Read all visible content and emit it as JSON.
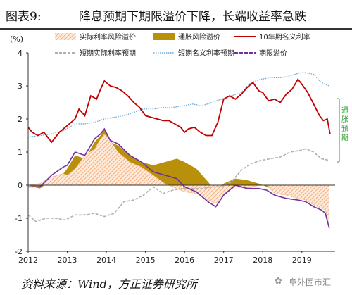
{
  "header": {
    "figure_label": "图表9:",
    "title": "降息预期下期限溢价下降，长端收益率急跌"
  },
  "footer": {
    "source": "资料来源：Wind，方正证券研究所",
    "watermark": "阜外固市汇"
  },
  "colors": {
    "nominal10y": "#c00000",
    "term_premium_area": "#b8900a",
    "real_risk_premium": "#f0a070",
    "short_real_expect": "#b0b0b0",
    "short_nominal_expect": "#6aa8d8",
    "term_premium_line": "#7030a0",
    "inflation_annotation": "#2aa02a"
  },
  "annotation": {
    "text": "通胀预期"
  },
  "chart_data": {
    "type": "line",
    "unit": "(%)",
    "ylim": [
      -2,
      4
    ],
    "yticks": [
      -2,
      -1,
      0,
      1,
      2,
      3,
      4
    ],
    "xlim": [
      2012.0,
      2019.85
    ],
    "xticks": [
      "2012",
      "2013",
      "2014",
      "2015",
      "2016",
      "2017",
      "2018",
      "2019"
    ],
    "grid": false,
    "legend_position": "top",
    "series": [
      {
        "name": "实际利率风险溢价",
        "style": "hatched-area",
        "points": [
          [
            2012.0,
            0.0
          ],
          [
            2012.3,
            0.05
          ],
          [
            2012.6,
            0.25
          ],
          [
            2012.9,
            0.35
          ],
          [
            2013.0,
            0.3
          ],
          [
            2013.2,
            0.5
          ],
          [
            2013.45,
            0.9
          ],
          [
            2013.7,
            1.1
          ],
          [
            2013.85,
            1.4
          ],
          [
            2013.95,
            1.55
          ],
          [
            2014.1,
            1.35
          ],
          [
            2014.3,
            1.0
          ],
          [
            2014.6,
            0.7
          ],
          [
            2014.9,
            0.55
          ],
          [
            2015.2,
            0.3
          ],
          [
            2015.5,
            0.05
          ],
          [
            2015.8,
            -0.1
          ],
          [
            2016.0,
            -0.2
          ],
          [
            2016.3,
            -0.25
          ],
          [
            2016.6,
            -0.45
          ],
          [
            2016.8,
            -0.55
          ],
          [
            2017.0,
            -0.25
          ],
          [
            2017.3,
            -0.05
          ],
          [
            2017.6,
            -0.1
          ],
          [
            2017.9,
            0.0
          ],
          [
            2018.1,
            0.0
          ],
          [
            2018.3,
            -0.25
          ],
          [
            2018.6,
            -0.3
          ],
          [
            2018.9,
            -0.4
          ],
          [
            2019.1,
            -0.45
          ],
          [
            2019.3,
            -0.6
          ],
          [
            2019.5,
            -0.7
          ],
          [
            2019.6,
            -0.75
          ],
          [
            2019.7,
            -1.3
          ]
        ]
      },
      {
        "name": "通胀风险溢价",
        "style": "solid-area",
        "points": [
          [
            2012.0,
            0.0
          ],
          [
            2012.3,
            -0.1
          ],
          [
            2012.6,
            0.15
          ],
          [
            2012.9,
            0.35
          ],
          [
            2013.0,
            0.5
          ],
          [
            2013.2,
            0.9
          ],
          [
            2013.45,
            0.8
          ],
          [
            2013.7,
            1.3
          ],
          [
            2013.85,
            1.5
          ],
          [
            2013.95,
            1.7
          ],
          [
            2014.1,
            1.3
          ],
          [
            2014.3,
            1.2
          ],
          [
            2014.6,
            0.9
          ],
          [
            2014.9,
            0.7
          ],
          [
            2015.2,
            0.6
          ],
          [
            2015.5,
            0.7
          ],
          [
            2015.8,
            0.8
          ],
          [
            2016.0,
            0.7
          ],
          [
            2016.3,
            0.5
          ],
          [
            2016.6,
            0.1
          ],
          [
            2016.8,
            -0.2
          ],
          [
            2017.0,
            0.05
          ],
          [
            2017.3,
            0.2
          ],
          [
            2017.6,
            0.15
          ],
          [
            2017.9,
            0.05
          ],
          [
            2018.1,
            -0.05
          ],
          [
            2018.3,
            -0.15
          ],
          [
            2018.6,
            -0.25
          ],
          [
            2018.9,
            -0.35
          ],
          [
            2019.1,
            -0.45
          ],
          [
            2019.3,
            -0.4
          ],
          [
            2019.5,
            -0.6
          ],
          [
            2019.6,
            -0.7
          ],
          [
            2019.7,
            -1.35
          ]
        ]
      },
      {
        "name": "10年期名义利率",
        "style": "line",
        "points": [
          [
            2012.0,
            1.75
          ],
          [
            2012.1,
            1.6
          ],
          [
            2012.25,
            1.5
          ],
          [
            2012.4,
            1.6
          ],
          [
            2012.6,
            1.3
          ],
          [
            2012.8,
            1.6
          ],
          [
            2013.0,
            1.8
          ],
          [
            2013.2,
            2.0
          ],
          [
            2013.3,
            2.3
          ],
          [
            2013.45,
            2.1
          ],
          [
            2013.6,
            2.7
          ],
          [
            2013.75,
            2.6
          ],
          [
            2013.85,
            2.9
          ],
          [
            2013.95,
            3.15
          ],
          [
            2014.1,
            3.0
          ],
          [
            2014.25,
            2.95
          ],
          [
            2014.4,
            2.85
          ],
          [
            2014.55,
            2.7
          ],
          [
            2014.7,
            2.5
          ],
          [
            2014.85,
            2.35
          ],
          [
            2015.0,
            2.1
          ],
          [
            2015.15,
            2.05
          ],
          [
            2015.3,
            2.0
          ],
          [
            2015.45,
            1.95
          ],
          [
            2015.6,
            1.95
          ],
          [
            2015.75,
            1.85
          ],
          [
            2015.9,
            1.75
          ],
          [
            2016.0,
            1.6
          ],
          [
            2016.1,
            1.7
          ],
          [
            2016.25,
            1.75
          ],
          [
            2016.4,
            1.6
          ],
          [
            2016.55,
            1.5
          ],
          [
            2016.7,
            1.5
          ],
          [
            2016.85,
            1.9
          ],
          [
            2017.0,
            2.6
          ],
          [
            2017.15,
            2.7
          ],
          [
            2017.3,
            2.6
          ],
          [
            2017.45,
            2.75
          ],
          [
            2017.6,
            2.95
          ],
          [
            2017.75,
            3.1
          ],
          [
            2017.9,
            2.85
          ],
          [
            2018.0,
            2.8
          ],
          [
            2018.15,
            2.55
          ],
          [
            2018.3,
            2.6
          ],
          [
            2018.45,
            2.5
          ],
          [
            2018.6,
            2.75
          ],
          [
            2018.75,
            2.9
          ],
          [
            2018.9,
            3.2
          ],
          [
            2019.0,
            3.05
          ],
          [
            2019.15,
            2.8
          ],
          [
            2019.3,
            2.45
          ],
          [
            2019.45,
            2.1
          ],
          [
            2019.55,
            1.95
          ],
          [
            2019.65,
            2.0
          ],
          [
            2019.72,
            1.55
          ]
        ]
      },
      {
        "name": "短期实际利率预期",
        "style": "dashed-line",
        "points": [
          [
            2012.0,
            -0.9
          ],
          [
            2012.2,
            -1.1
          ],
          [
            2012.45,
            -1.0
          ],
          [
            2012.7,
            -1.0
          ],
          [
            2012.95,
            -1.05
          ],
          [
            2013.2,
            -0.9
          ],
          [
            2013.45,
            -0.9
          ],
          [
            2013.7,
            -0.85
          ],
          [
            2013.95,
            -0.95
          ],
          [
            2014.2,
            -0.85
          ],
          [
            2014.45,
            -0.5
          ],
          [
            2014.7,
            -0.45
          ],
          [
            2014.95,
            -0.3
          ],
          [
            2015.2,
            -0.05
          ],
          [
            2015.45,
            -0.25
          ],
          [
            2015.7,
            -0.15
          ],
          [
            2015.95,
            -0.1
          ],
          [
            2016.2,
            -0.1
          ],
          [
            2016.45,
            -0.1
          ],
          [
            2016.7,
            -0.05
          ],
          [
            2016.95,
            -0.05
          ],
          [
            2017.2,
            0.1
          ],
          [
            2017.45,
            0.45
          ],
          [
            2017.7,
            0.65
          ],
          [
            2017.95,
            0.75
          ],
          [
            2018.2,
            0.8
          ],
          [
            2018.45,
            0.85
          ],
          [
            2018.7,
            1.0
          ],
          [
            2018.95,
            1.05
          ],
          [
            2019.1,
            1.1
          ],
          [
            2019.3,
            1.0
          ],
          [
            2019.5,
            0.8
          ],
          [
            2019.7,
            0.75
          ]
        ]
      },
      {
        "name": "短期名义利率预期",
        "style": "dotted-line",
        "points": [
          [
            2012.0,
            1.45
          ],
          [
            2012.3,
            1.5
          ],
          [
            2012.6,
            1.55
          ],
          [
            2012.9,
            1.65
          ],
          [
            2013.2,
            1.85
          ],
          [
            2013.45,
            1.85
          ],
          [
            2013.7,
            1.9
          ],
          [
            2013.95,
            2.0
          ],
          [
            2014.2,
            2.05
          ],
          [
            2014.45,
            2.1
          ],
          [
            2014.7,
            2.2
          ],
          [
            2014.95,
            2.3
          ],
          [
            2015.2,
            2.3
          ],
          [
            2015.45,
            2.35
          ],
          [
            2015.7,
            2.35
          ],
          [
            2015.95,
            2.4
          ],
          [
            2016.2,
            2.45
          ],
          [
            2016.45,
            2.4
          ],
          [
            2016.7,
            2.5
          ],
          [
            2016.95,
            2.6
          ],
          [
            2017.2,
            2.7
          ],
          [
            2017.45,
            2.8
          ],
          [
            2017.7,
            3.1
          ],
          [
            2017.95,
            3.2
          ],
          [
            2018.2,
            3.25
          ],
          [
            2018.45,
            3.25
          ],
          [
            2018.7,
            3.3
          ],
          [
            2018.95,
            3.4
          ],
          [
            2019.1,
            3.4
          ],
          [
            2019.3,
            3.35
          ],
          [
            2019.5,
            3.1
          ],
          [
            2019.7,
            3.0
          ]
        ]
      },
      {
        "name": "期限溢价",
        "style": "line",
        "points": [
          [
            2012.0,
            -0.05
          ],
          [
            2012.3,
            -0.05
          ],
          [
            2012.6,
            0.3
          ],
          [
            2012.9,
            0.55
          ],
          [
            2013.0,
            0.6
          ],
          [
            2013.2,
            1.0
          ],
          [
            2013.45,
            0.9
          ],
          [
            2013.7,
            1.4
          ],
          [
            2013.85,
            1.55
          ],
          [
            2013.95,
            1.7
          ],
          [
            2014.1,
            1.35
          ],
          [
            2014.3,
            1.25
          ],
          [
            2014.6,
            0.9
          ],
          [
            2014.9,
            0.7
          ],
          [
            2015.2,
            0.4
          ],
          [
            2015.5,
            0.3
          ],
          [
            2015.8,
            0.2
          ],
          [
            2016.0,
            -0.05
          ],
          [
            2016.3,
            -0.2
          ],
          [
            2016.6,
            -0.5
          ],
          [
            2016.8,
            -0.65
          ],
          [
            2017.0,
            -0.3
          ],
          [
            2017.3,
            0.0
          ],
          [
            2017.6,
            -0.1
          ],
          [
            2017.9,
            -0.1
          ],
          [
            2018.1,
            -0.15
          ],
          [
            2018.3,
            -0.3
          ],
          [
            2018.6,
            -0.4
          ],
          [
            2018.9,
            -0.45
          ],
          [
            2019.1,
            -0.5
          ],
          [
            2019.3,
            -0.65
          ],
          [
            2019.5,
            -0.75
          ],
          [
            2019.6,
            -0.85
          ],
          [
            2019.7,
            -1.3
          ]
        ]
      }
    ]
  }
}
